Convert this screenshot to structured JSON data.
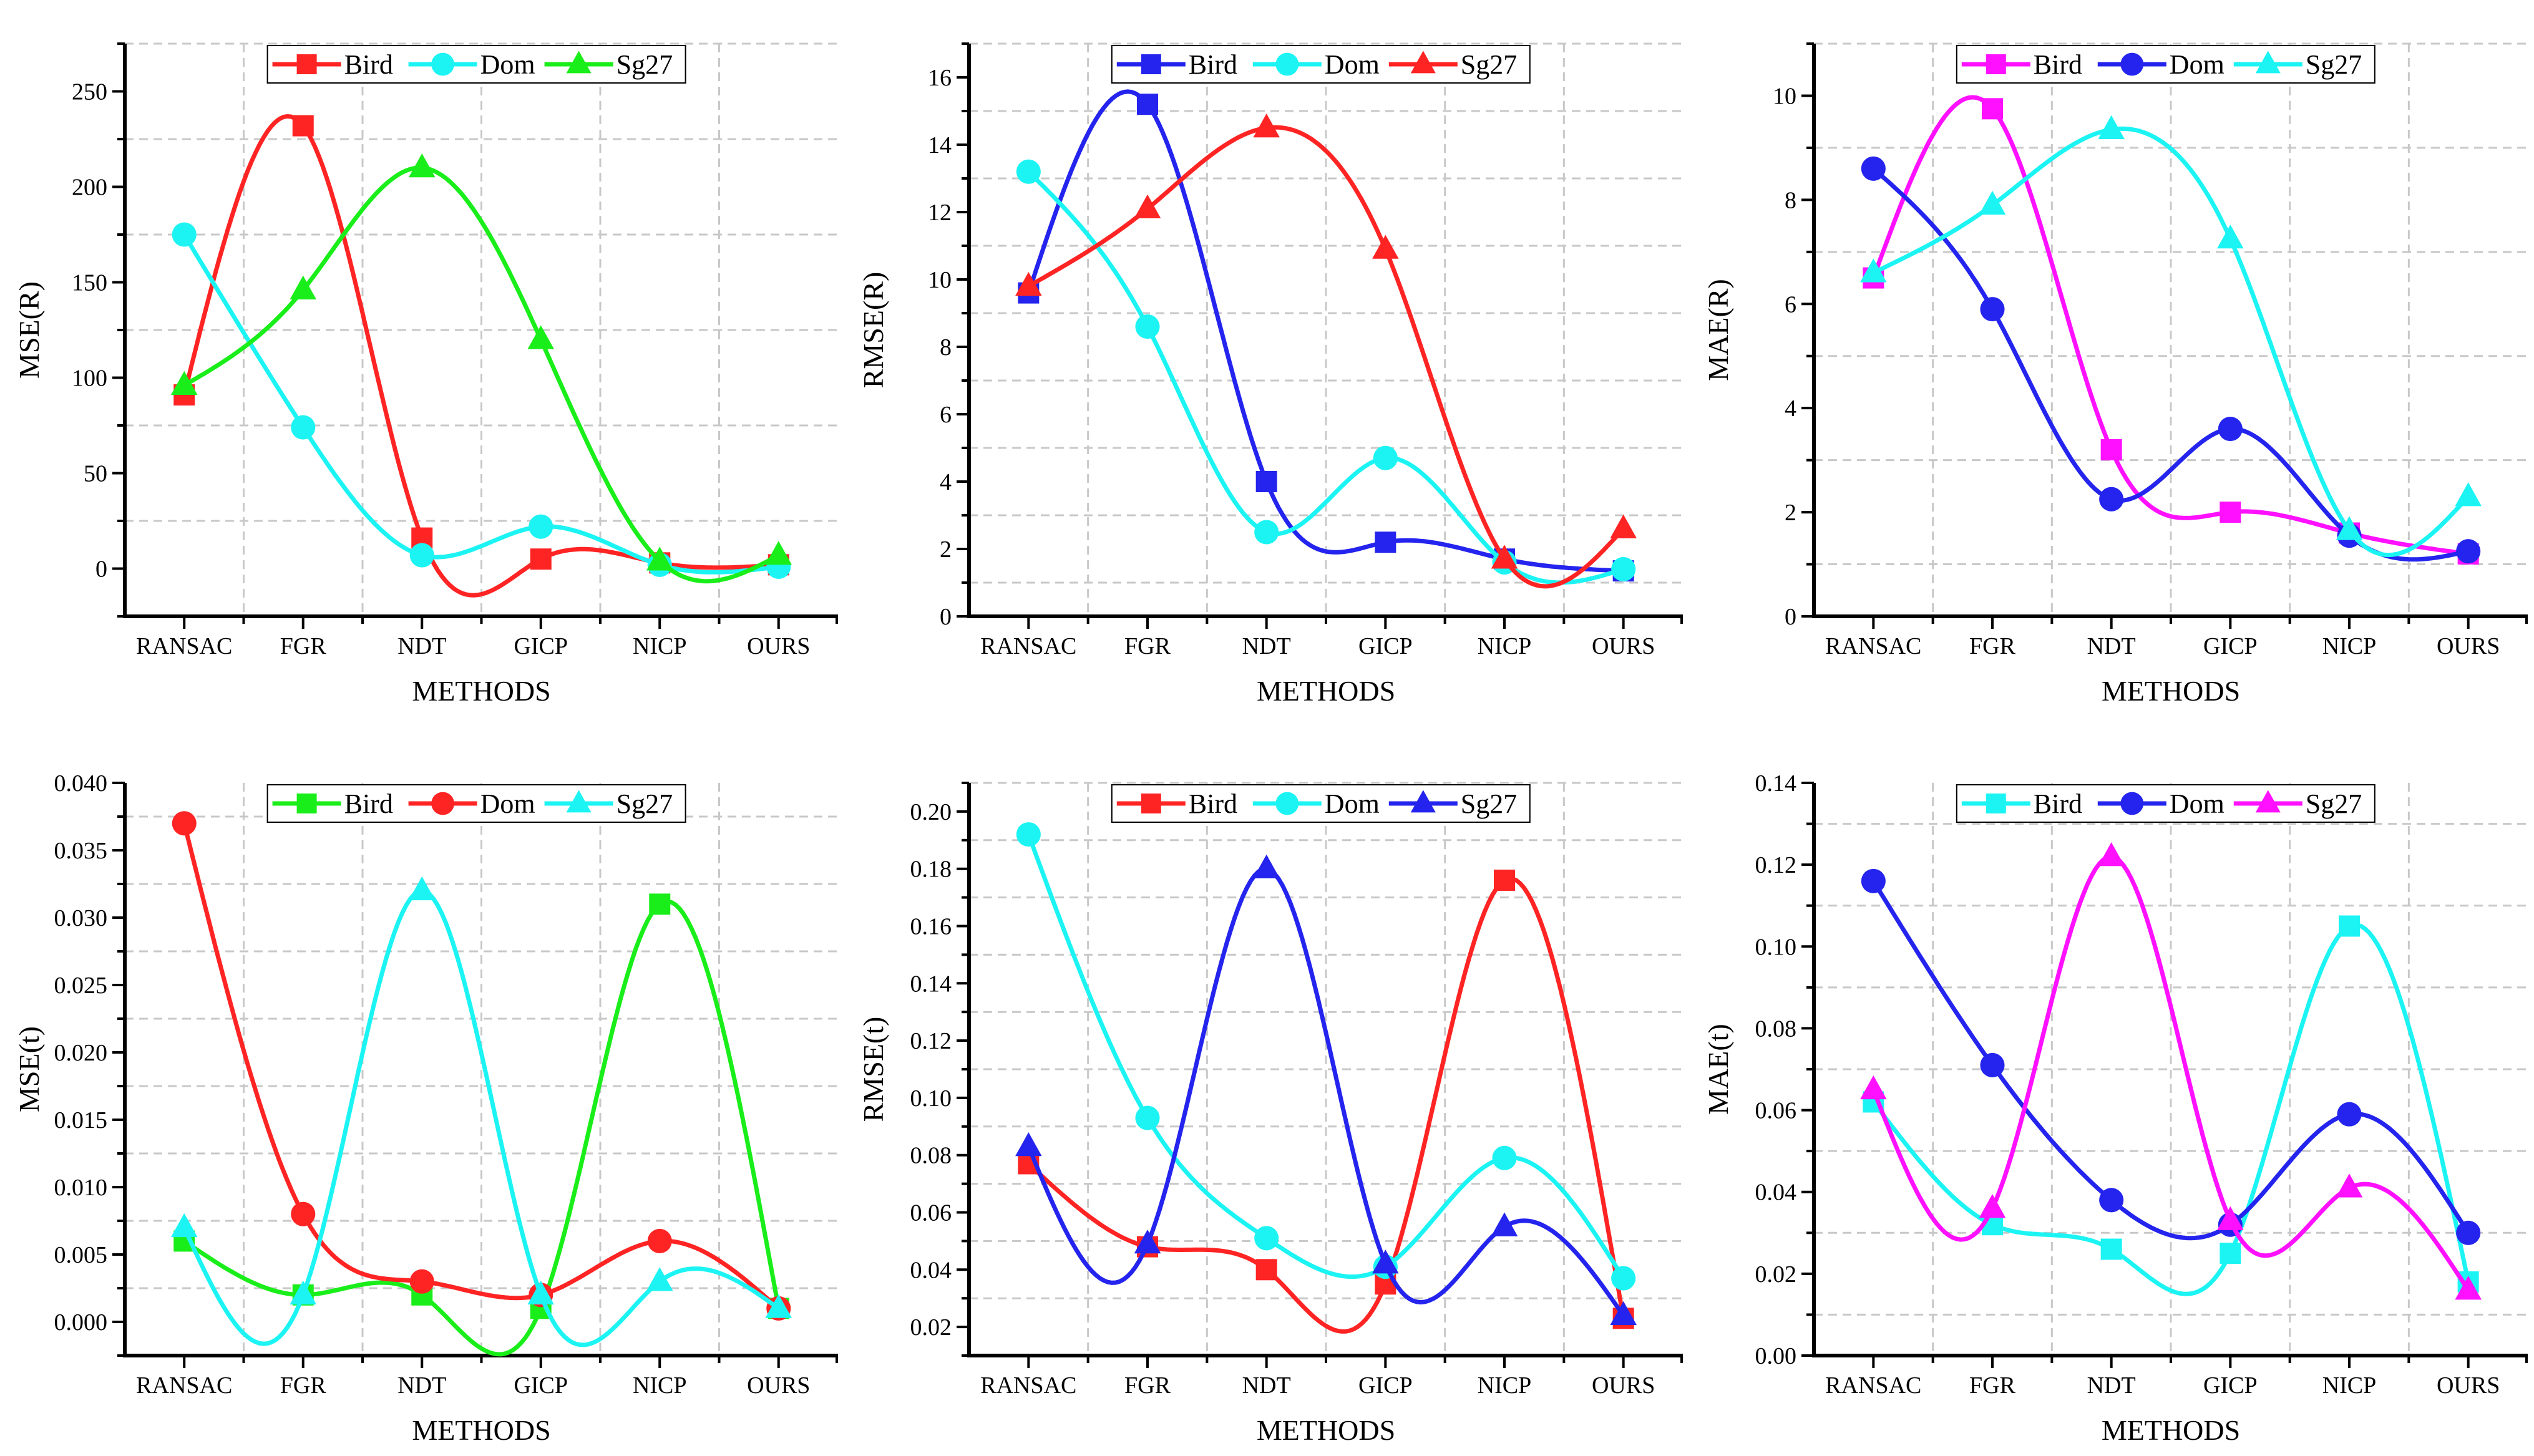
{
  "colors": {
    "red": "#ff2424",
    "cyan": "#1cf4f4",
    "green": "#1aee1a",
    "blue": "#2424ee",
    "magenta": "#ff10ff"
  },
  "chart_data": [
    {
      "type": "line",
      "xlabel": "METHODS",
      "ylabel": "MSE(R)",
      "categories": [
        "RANSAC",
        "FGR",
        "NDT",
        "GICP",
        "NICP",
        "OURS"
      ],
      "ylim": [
        -25,
        275
      ],
      "yticks": [
        "0",
        "50",
        "100",
        "150",
        "200",
        "250"
      ],
      "legend_position": "top-center",
      "series": [
        {
          "name": "Bird",
          "marker": "square",
          "color": "#ff2424",
          "values": [
            91,
            232,
            16,
            5,
            3,
            2
          ]
        },
        {
          "name": "Dom",
          "marker": "circle",
          "color": "#1cf4f4",
          "values": [
            175,
            74,
            7,
            22,
            2,
            1
          ]
        },
        {
          "name": "Sg27",
          "marker": "triangle",
          "color": "#1aee1a",
          "values": [
            96,
            146,
            210,
            120,
            4,
            7
          ]
        }
      ]
    },
    {
      "type": "line",
      "xlabel": "METHODS",
      "ylabel": "RMSE(R)",
      "categories": [
        "RANSAC",
        "FGR",
        "NDT",
        "GICP",
        "NICP",
        "OURS"
      ],
      "ylim": [
        0,
        17
      ],
      "yticks": [
        "0",
        "2",
        "4",
        "6",
        "8",
        "10",
        "12",
        "14",
        "16"
      ],
      "legend_position": "top-center",
      "series": [
        {
          "name": "Bird",
          "marker": "square",
          "color": "#2424ee",
          "values": [
            9.6,
            15.2,
            4.0,
            2.2,
            1.7,
            1.35
          ]
        },
        {
          "name": "Dom",
          "marker": "circle",
          "color": "#1cf4f4",
          "values": [
            13.2,
            8.6,
            2.5,
            4.7,
            1.6,
            1.4
          ]
        },
        {
          "name": "Sg27",
          "marker": "triangle",
          "color": "#ff2424",
          "values": [
            9.8,
            12.1,
            14.5,
            10.9,
            1.7,
            2.6
          ]
        }
      ]
    },
    {
      "type": "line",
      "xlabel": "METHODS",
      "ylabel": "MAE(R)",
      "categories": [
        "RANSAC",
        "FGR",
        "NDT",
        "GICP",
        "NICP",
        "OURS"
      ],
      "ylim": [
        0,
        11
      ],
      "yticks": [
        "0",
        "2",
        "4",
        "6",
        "8",
        "10"
      ],
      "legend_position": "top-center",
      "series": [
        {
          "name": "Bird",
          "marker": "square",
          "color": "#ff10ff",
          "values": [
            6.5,
            9.75,
            3.2,
            2.0,
            1.6,
            1.2
          ]
        },
        {
          "name": "Dom",
          "marker": "circle",
          "color": "#2424ee",
          "values": [
            8.6,
            5.9,
            2.25,
            3.6,
            1.55,
            1.25
          ]
        },
        {
          "name": "Sg27",
          "marker": "triangle",
          "color": "#1cf4f4",
          "values": [
            6.6,
            7.9,
            9.35,
            7.25,
            1.65,
            2.3
          ]
        }
      ]
    },
    {
      "type": "line",
      "xlabel": "METHODS",
      "ylabel": "MSE(t)",
      "categories": [
        "RANSAC",
        "FGR",
        "NDT",
        "GICP",
        "NICP",
        "OURS"
      ],
      "ylim": [
        -0.0025,
        0.04
      ],
      "yticks": [
        "0.000",
        "0.005",
        "0.010",
        "0.015",
        "0.020",
        "0.025",
        "0.030",
        "0.035",
        "0.040"
      ],
      "legend_position": "top-center",
      "series": [
        {
          "name": "Bird",
          "marker": "square",
          "color": "#1aee1a",
          "values": [
            0.006,
            0.002,
            0.002,
            0.001,
            0.031,
            0.001
          ]
        },
        {
          "name": "Dom",
          "marker": "circle",
          "color": "#ff2424",
          "values": [
            0.037,
            0.008,
            0.003,
            0.002,
            0.006,
            0.001
          ]
        },
        {
          "name": "Sg27",
          "marker": "triangle",
          "color": "#1cf4f4",
          "values": [
            0.007,
            0.002,
            0.032,
            0.002,
            0.003,
            0.001
          ]
        }
      ]
    },
    {
      "type": "line",
      "xlabel": "METHODS",
      "ylabel": "RMSE(t)",
      "categories": [
        "RANSAC",
        "FGR",
        "NDT",
        "GICP",
        "NICP",
        "OURS"
      ],
      "ylim": [
        0.01,
        0.21
      ],
      "yticks": [
        "0.02",
        "0.04",
        "0.06",
        "0.08",
        "0.10",
        "0.12",
        "0.14",
        "0.16",
        "0.18",
        "0.20"
      ],
      "legend_position": "top-center",
      "series": [
        {
          "name": "Bird",
          "marker": "square",
          "color": "#ff2424",
          "values": [
            0.077,
            0.048,
            0.04,
            0.035,
            0.176,
            0.023
          ]
        },
        {
          "name": "Dom",
          "marker": "circle",
          "color": "#1cf4f4",
          "values": [
            0.192,
            0.093,
            0.051,
            0.041,
            0.079,
            0.037
          ]
        },
        {
          "name": "Sg27",
          "marker": "triangle",
          "color": "#2424ee",
          "values": [
            0.083,
            0.049,
            0.18,
            0.042,
            0.055,
            0.024
          ]
        }
      ]
    },
    {
      "type": "line",
      "xlabel": "METHODS",
      "ylabel": "MAE(t)",
      "categories": [
        "RANSAC",
        "FGR",
        "NDT",
        "GICP",
        "NICP",
        "OURS"
      ],
      "ylim": [
        0,
        0.14
      ],
      "yticks": [
        "0.00",
        "0.02",
        "0.04",
        "0.06",
        "0.08",
        "0.10",
        "0.12",
        "0.14"
      ],
      "legend_position": "top-center",
      "series": [
        {
          "name": "Bird",
          "marker": "square",
          "color": "#1cf4f4",
          "values": [
            0.062,
            0.032,
            0.026,
            0.025,
            0.105,
            0.018
          ]
        },
        {
          "name": "Dom",
          "marker": "circle",
          "color": "#2424ee",
          "values": [
            0.116,
            0.071,
            0.038,
            0.032,
            0.059,
            0.03
          ]
        },
        {
          "name": "Sg27",
          "marker": "triangle",
          "color": "#ff10ff",
          "values": [
            0.065,
            0.036,
            0.122,
            0.033,
            0.041,
            0.016
          ]
        }
      ]
    }
  ]
}
